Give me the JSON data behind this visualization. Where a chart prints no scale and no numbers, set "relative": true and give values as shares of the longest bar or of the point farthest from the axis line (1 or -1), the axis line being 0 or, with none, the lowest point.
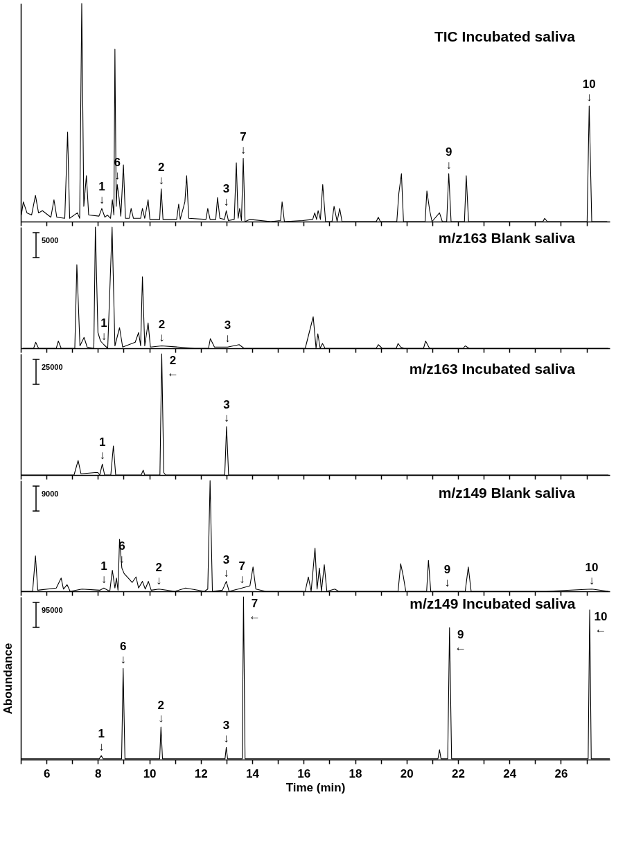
{
  "chart_data": [
    {
      "type": "line",
      "title": "TIC Incubated saliva",
      "relative": true,
      "tick_labels": false,
      "xlim": [
        5,
        27.9
      ],
      "xticks": [
        {
          "value": 5,
          "label": null
        },
        6,
        {
          "value": 7,
          "label": null
        },
        8,
        {
          "value": 9,
          "label": null
        },
        10,
        {
          "value": 11,
          "label": null
        },
        12,
        {
          "value": 13,
          "label": null
        },
        14,
        {
          "value": 15,
          "label": null
        },
        16,
        {
          "value": 17,
          "label": null
        },
        18,
        {
          "value": 19,
          "label": null
        },
        20,
        {
          "value": 21,
          "label": null
        },
        22,
        {
          "value": 23,
          "label": null
        },
        24,
        {
          "value": 25,
          "label": null
        },
        26,
        {
          "value": 27,
          "label": null
        }
      ],
      "x": [
        5.02,
        5.1,
        5.24,
        5.42,
        5.57,
        5.69,
        5.84,
        6.17,
        6.29,
        6.4,
        6.71,
        6.82,
        6.9,
        7.2,
        7.29,
        7.37,
        7.45,
        7.55,
        7.64,
        8.04,
        8.15,
        8.27,
        8.37,
        8.49,
        8.56,
        8.62,
        8.66,
        8.71,
        8.75,
        8.82,
        8.89,
        8.99,
        9.07,
        9.22,
        9.29,
        9.38,
        9.66,
        9.73,
        9.82,
        9.95,
        10.02,
        10.4,
        10.46,
        10.53,
        11.06,
        11.14,
        11.2,
        11.38,
        11.45,
        11.53,
        12.2,
        12.27,
        12.36,
        12.58,
        12.65,
        12.74,
        12.92,
        12.99,
        13.07,
        13.3,
        13.38,
        13.45,
        13.51,
        13.58,
        13.65,
        13.72,
        13.91,
        14.72,
        15.1,
        15.16,
        15.25,
        15.96,
        16.35,
        16.43,
        16.5,
        16.56,
        16.65,
        16.74,
        16.85,
        17.1,
        17.18,
        17.3,
        17.4,
        17.49,
        18.82,
        18.9,
        18.98,
        19.62,
        19.7,
        19.8,
        19.88,
        20.72,
        20.79,
        20.9,
        20.99,
        21.28,
        21.39,
        21.56,
        21.64,
        21.73,
        22.25,
        22.32,
        22.41,
        25.3,
        25.37,
        25.47,
        27.02,
        27.1,
        27.2,
        27.8
      ],
      "series": [
        {
          "color": "#000000",
          "values": [
            0.03,
            0.09,
            0.04,
            0.03,
            0.12,
            0.04,
            0.05,
            0.02,
            0.1,
            0.02,
            0.015,
            0.41,
            0.015,
            0.04,
            0.015,
            1,
            0.07,
            0.21,
            0.03,
            0.025,
            0.06,
            0.02,
            0.03,
            0.015,
            0.1,
            0.03,
            0.79,
            0.07,
            0.17,
            0.11,
            0.025,
            0.26,
            0.015,
            0.015,
            0.06,
            0.015,
            0.015,
            0.06,
            0.015,
            0.1,
            0.01,
            0.01,
            0.15,
            0.01,
            0.01,
            0.08,
            0.01,
            0.09,
            0.21,
            0.015,
            0.01,
            0.06,
            0.01,
            0.01,
            0.11,
            0.015,
            0.01,
            0.05,
            0.005,
            0.01,
            0.27,
            0.015,
            0.06,
            0.005,
            0.29,
            0,
            0.01,
            0,
            0.005,
            0.09,
            0,
            0.005,
            0.01,
            0.04,
            0.01,
            0.05,
            0.01,
            0.17,
            0,
            0,
            0.07,
            0,
            0.06,
            0,
            0,
            0.02,
            0,
            0,
            0.13,
            0.22,
            0,
            0,
            0.14,
            0.05,
            0,
            0.04,
            0,
            0,
            0.22,
            0,
            0,
            0.21,
            0,
            0,
            0.015,
            0,
            0,
            0.53,
            0,
            0
          ]
        }
      ],
      "annotations": [
        {
          "text": "1",
          "x": 8.15,
          "y": 0.06
        },
        {
          "text": "↓",
          "x": 8.15,
          "y": 0.06
        },
        {
          "text": "6",
          "x": 8.75,
          "y": 0.17
        },
        {
          "text": "↓",
          "x": 8.75,
          "y": 0.17
        },
        {
          "text": "2",
          "x": 10.46,
          "y": 0.15
        },
        {
          "text": "↓",
          "x": 10.46,
          "y": 0.15
        },
        {
          "text": "3",
          "x": 12.99,
          "y": 0.05
        },
        {
          "text": "↓",
          "x": 12.99,
          "y": 0.05
        },
        {
          "text": "7",
          "x": 13.65,
          "y": 0.29
        },
        {
          "text": "↓",
          "x": 13.65,
          "y": 0.29
        },
        {
          "text": "9",
          "x": 21.64,
          "y": 0.22
        },
        {
          "text": "↓",
          "x": 21.64,
          "y": 0.22
        },
        {
          "text": "10",
          "x": 27.1,
          "y": 0.53
        },
        {
          "text": "↓",
          "x": 27.1,
          "y": 0.53
        }
      ]
    },
    {
      "type": "line",
      "title": "m/z163 Blank saliva",
      "relative": true,
      "tick_labels": false,
      "xlim": [
        5,
        27.9
      ],
      "xticks": [
        {
          "value": 5,
          "label": null
        },
        6,
        {
          "value": 7,
          "label": null
        },
        8,
        {
          "value": 9,
          "label": null
        },
        10,
        {
          "value": 11,
          "label": null
        },
        12,
        {
          "value": 13,
          "label": null
        },
        14,
        {
          "value": 15,
          "label": null
        },
        16,
        {
          "value": 17,
          "label": null
        },
        18,
        {
          "value": 19,
          "label": null
        },
        20,
        {
          "value": 21,
          "label": null
        },
        22,
        {
          "value": 23,
          "label": null
        },
        24,
        {
          "value": 25,
          "label": null
        },
        26,
        {
          "value": 27,
          "label": null
        }
      ],
      "x": [
        5.08,
        5.5,
        5.58,
        5.69,
        6.38,
        6.46,
        6.57,
        7.1,
        7.18,
        7.3,
        7.46,
        7.58,
        7.84,
        7.9,
        8.0,
        8.1,
        8.23,
        8.38,
        8.55,
        8.66,
        8.84,
        8.96,
        9.45,
        9.58,
        9.66,
        9.73,
        9.82,
        9.95,
        10.04,
        10.48,
        11.76,
        12.3,
        12.37,
        12.53,
        13.04,
        13.49,
        13.68,
        14.48,
        16.06,
        16.37,
        16.48,
        16.55,
        16.64,
        16.73,
        16.83,
        17.13,
        18.82,
        18.9,
        19.05,
        19.6,
        19.67,
        19.77,
        19.9,
        20.66,
        20.74,
        20.89,
        22.2,
        22.28,
        22.43,
        25.35,
        27.85
      ],
      "series": [
        {
          "color": "#000000",
          "values": [
            0,
            0,
            0.05,
            0,
            0,
            0.06,
            0,
            0,
            0.69,
            0.02,
            0.09,
            0.01,
            0,
            1,
            0.13,
            0.06,
            0.03,
            0,
            1,
            0.02,
            0.17,
            0.01,
            0.05,
            0.13,
            0.02,
            0.59,
            0.02,
            0.21,
            0.01,
            0.02,
            0,
            0,
            0.08,
            0.01,
            0.01,
            0.03,
            0,
            0,
            0,
            0.26,
            0,
            0.12,
            0,
            0.04,
            0,
            0,
            0,
            0.03,
            0,
            0,
            0.04,
            0.01,
            0,
            0,
            0.06,
            0,
            0,
            0.02,
            0,
            0,
            0
          ]
        }
      ],
      "annotations": [
        "5000",
        {
          "text": "1",
          "x": 8.23,
          "y": 0.03
        },
        {
          "text": "↓",
          "x": 8.23,
          "y": 0.03
        },
        {
          "text": "2",
          "x": 10.48,
          "y": 0.02
        },
        {
          "text": "↓",
          "x": 10.48,
          "y": 0.02
        },
        {
          "text": "3",
          "x": 13.04,
          "y": 0.01
        },
        {
          "text": "↓",
          "x": 13.04,
          "y": 0.01
        }
      ]
    },
    {
      "type": "line",
      "title": "m/z163 Incubated saliva",
      "relative": true,
      "tick_labels": false,
      "xlim": [
        5,
        27.9
      ],
      "xticks": [
        {
          "value": 5,
          "label": null
        },
        6,
        {
          "value": 7,
          "label": null
        },
        8,
        {
          "value": 9,
          "label": null
        },
        10,
        {
          "value": 11,
          "label": null
        },
        12,
        {
          "value": 13,
          "label": null
        },
        14,
        {
          "value": 15,
          "label": null
        },
        16,
        {
          "value": 17,
          "label": null
        },
        18,
        {
          "value": 19,
          "label": null
        },
        20,
        {
          "value": 21,
          "label": null
        },
        22,
        {
          "value": 23,
          "label": null
        },
        24,
        {
          "value": 25,
          "label": null
        },
        26,
        {
          "value": 27,
          "label": null
        }
      ],
      "x": [
        5,
        7.07,
        7.23,
        7.34,
        7.89,
        8.0,
        8.07,
        8.17,
        8.26,
        8.5,
        8.6,
        8.69,
        9.68,
        9.76,
        9.82,
        10.41,
        10.48,
        10.56,
        10.63,
        12.93,
        13.0,
        13.08,
        27.85
      ],
      "series": [
        {
          "color": "#000000",
          "values": [
            0,
            0,
            0.12,
            0.01,
            0.02,
            0.02,
            0,
            0.09,
            0,
            0,
            0.24,
            0,
            0,
            0.04,
            0,
            0,
            1,
            0.02,
            0,
            0,
            0.4,
            0,
            0
          ]
        }
      ],
      "annotations": [
        "25000",
        {
          "text": "1",
          "x": 8.17,
          "y": 0.09
        },
        {
          "text": "↓",
          "x": 8.17,
          "y": 0.09
        },
        {
          "text": "2",
          "x": 10.48,
          "y": 1
        },
        {
          "text": "←",
          "x": 10.48,
          "y": 1
        },
        {
          "text": "3",
          "x": 13.0,
          "y": 0.4
        },
        {
          "text": "↓",
          "x": 13.0,
          "y": 0.4
        }
      ]
    },
    {
      "type": "line",
      "title": "m/z149 Blank saliva",
      "relative": true,
      "tick_labels": false,
      "xlim": [
        5,
        27.9
      ],
      "xticks": [
        {
          "value": 5,
          "label": null
        },
        6,
        {
          "value": 7,
          "label": null
        },
        8,
        {
          "value": 9,
          "label": null
        },
        10,
        {
          "value": 11,
          "label": null
        },
        12,
        {
          "value": 13,
          "label": null
        },
        14,
        {
          "value": 15,
          "label": null
        },
        16,
        {
          "value": 17,
          "label": null
        },
        18,
        {
          "value": 19,
          "label": null
        },
        20,
        {
          "value": 21,
          "label": null
        },
        22,
        {
          "value": 23,
          "label": null
        },
        24,
        {
          "value": 25,
          "label": null
        },
        26,
        {
          "value": 27,
          "label": null
        }
      ],
      "x": [
        5,
        5.46,
        5.57,
        5.66,
        6.38,
        6.57,
        6.66,
        6.8,
        6.92,
        7.38,
        8.07,
        8.23,
        8.46,
        8.56,
        8.66,
        8.72,
        8.78,
        8.84,
        8.93,
        9.02,
        9.18,
        9.33,
        9.48,
        9.58,
        9.73,
        9.84,
        9.96,
        10.07,
        10.37,
        10.99,
        11.41,
        12.14,
        12.27,
        12.36,
        12.45,
        12.84,
        12.99,
        13.1,
        13.45,
        13.6,
        13.91,
        14.03,
        14.14,
        14.52,
        16.06,
        16.18,
        16.29,
        16.44,
        16.52,
        16.61,
        16.69,
        16.8,
        16.9,
        17.21,
        17.36,
        18.98,
        19.06,
        19.67,
        19.77,
        19.87,
        19.97,
        20.78,
        20.85,
        20.94,
        21.58,
        22.28,
        22.4,
        22.51,
        25.43,
        27.2,
        27.85
      ],
      "series": [
        {
          "color": "#000000",
          "values": [
            0,
            0,
            0.32,
            0.01,
            0.03,
            0.12,
            0.02,
            0.06,
            0,
            0.02,
            0.01,
            0.03,
            0,
            0.19,
            0.03,
            0.12,
            0.01,
            0.47,
            0.21,
            0.16,
            0.12,
            0.08,
            0.13,
            0.03,
            0.09,
            0.02,
            0.09,
            0.01,
            0.02,
            0,
            0.03,
            0,
            0.02,
            1,
            0,
            0.01,
            0.09,
            0,
            0.02,
            0.03,
            0.05,
            0.22,
            0.02,
            0,
            0,
            0.13,
            0,
            0.39,
            0.02,
            0.21,
            0,
            0.24,
            0,
            0.02,
            0,
            0,
            0,
            0,
            0.25,
            0.14,
            0,
            0,
            0.28,
            0,
            0,
            0,
            0.22,
            0,
            0,
            0.02,
            0
          ]
        }
      ],
      "annotations": [
        "9000",
        {
          "text": "1",
          "x": 8.23,
          "y": 0.03
        },
        {
          "text": "↓",
          "x": 8.23,
          "y": 0.03
        },
        {
          "text": "6",
          "x": 8.93,
          "y": 0.21
        },
        {
          "text": "↓",
          "x": 8.93,
          "y": 0.21
        },
        {
          "text": "2",
          "x": 10.37,
          "y": 0.02
        },
        {
          "text": "↓",
          "x": 10.37,
          "y": 0.02
        },
        {
          "text": "3",
          "x": 12.99,
          "y": 0.09
        },
        {
          "text": "↓",
          "x": 12.99,
          "y": 0.09
        },
        {
          "text": "7",
          "x": 13.6,
          "y": 0.03
        },
        {
          "text": "↓",
          "x": 13.6,
          "y": 0.03
        },
        {
          "text": "9",
          "x": 21.58,
          "y": 0
        },
        {
          "text": "↓",
          "x": 21.58,
          "y": 0
        },
        {
          "text": "10",
          "x": 27.2,
          "y": 0.02
        },
        {
          "text": "↓",
          "x": 27.2,
          "y": 0.02
        }
      ]
    },
    {
      "type": "line",
      "title": "m/z149 Incubated saliva",
      "relative": true,
      "tick_labels": "x",
      "xlabel": "Time (min)",
      "ylabel": "Aboundance",
      "xlim": [
        5,
        27.9
      ],
      "xticks": [
        {
          "value": 5,
          "label": null
        },
        6,
        {
          "value": 7,
          "label": null
        },
        8,
        {
          "value": 9,
          "label": null
        },
        10,
        {
          "value": 11,
          "label": null
        },
        12,
        {
          "value": 13,
          "label": null
        },
        14,
        {
          "value": 15,
          "label": null
        },
        16,
        {
          "value": 17,
          "label": null
        },
        18,
        {
          "value": 19,
          "label": null
        },
        20,
        {
          "value": 21,
          "label": null
        },
        22,
        {
          "value": 23,
          "label": null
        },
        24,
        {
          "value": 25,
          "label": null
        },
        26,
        {
          "value": 27,
          "label": null
        }
      ],
      "x": [
        5,
        8.05,
        8.13,
        8.2,
        8.92,
        8.98,
        9.05,
        10.4,
        10.45,
        10.51,
        12.94,
        12.99,
        13.04,
        13.61,
        13.66,
        13.72,
        21.22,
        21.28,
        21.34,
        21.6,
        21.67,
        21.75,
        27.06,
        27.12,
        27.18,
        27.9
      ],
      "series": [
        {
          "color": "#000000",
          "values": [
            0.005,
            0.005,
            0.024,
            0.005,
            0.005,
            0.56,
            0.005,
            0.005,
            0.2,
            0.005,
            0.005,
            0.075,
            0.005,
            0.005,
            1,
            0.005,
            0.005,
            0.06,
            0.005,
            0.005,
            0.81,
            0.005,
            0.005,
            0.92,
            0.005,
            0.005
          ]
        }
      ],
      "annotations": [
        "95000",
        {
          "text": "1",
          "x": 8.13,
          "y": 0.024
        },
        {
          "text": "↓",
          "x": 8.13,
          "y": 0.024
        },
        {
          "text": "6",
          "x": 8.98,
          "y": 0.56
        },
        {
          "text": "↓",
          "x": 8.98,
          "y": 0.56
        },
        {
          "text": "2",
          "x": 10.45,
          "y": 0.2
        },
        {
          "text": "↓",
          "x": 10.45,
          "y": 0.2
        },
        {
          "text": "3",
          "x": 12.99,
          "y": 0.075
        },
        {
          "text": "↓",
          "x": 12.99,
          "y": 0.075
        },
        {
          "text": "7",
          "x": 13.66,
          "y": 1
        },
        {
          "text": "←",
          "x": 13.66,
          "y": 1
        },
        {
          "text": "9",
          "x": 21.67,
          "y": 0.81
        },
        {
          "text": "←",
          "x": 21.67,
          "y": 0.81
        },
        {
          "text": "10",
          "x": 27.12,
          "y": 0.92
        },
        {
          "text": "←",
          "x": 27.12,
          "y": 0.92
        }
      ]
    }
  ]
}
